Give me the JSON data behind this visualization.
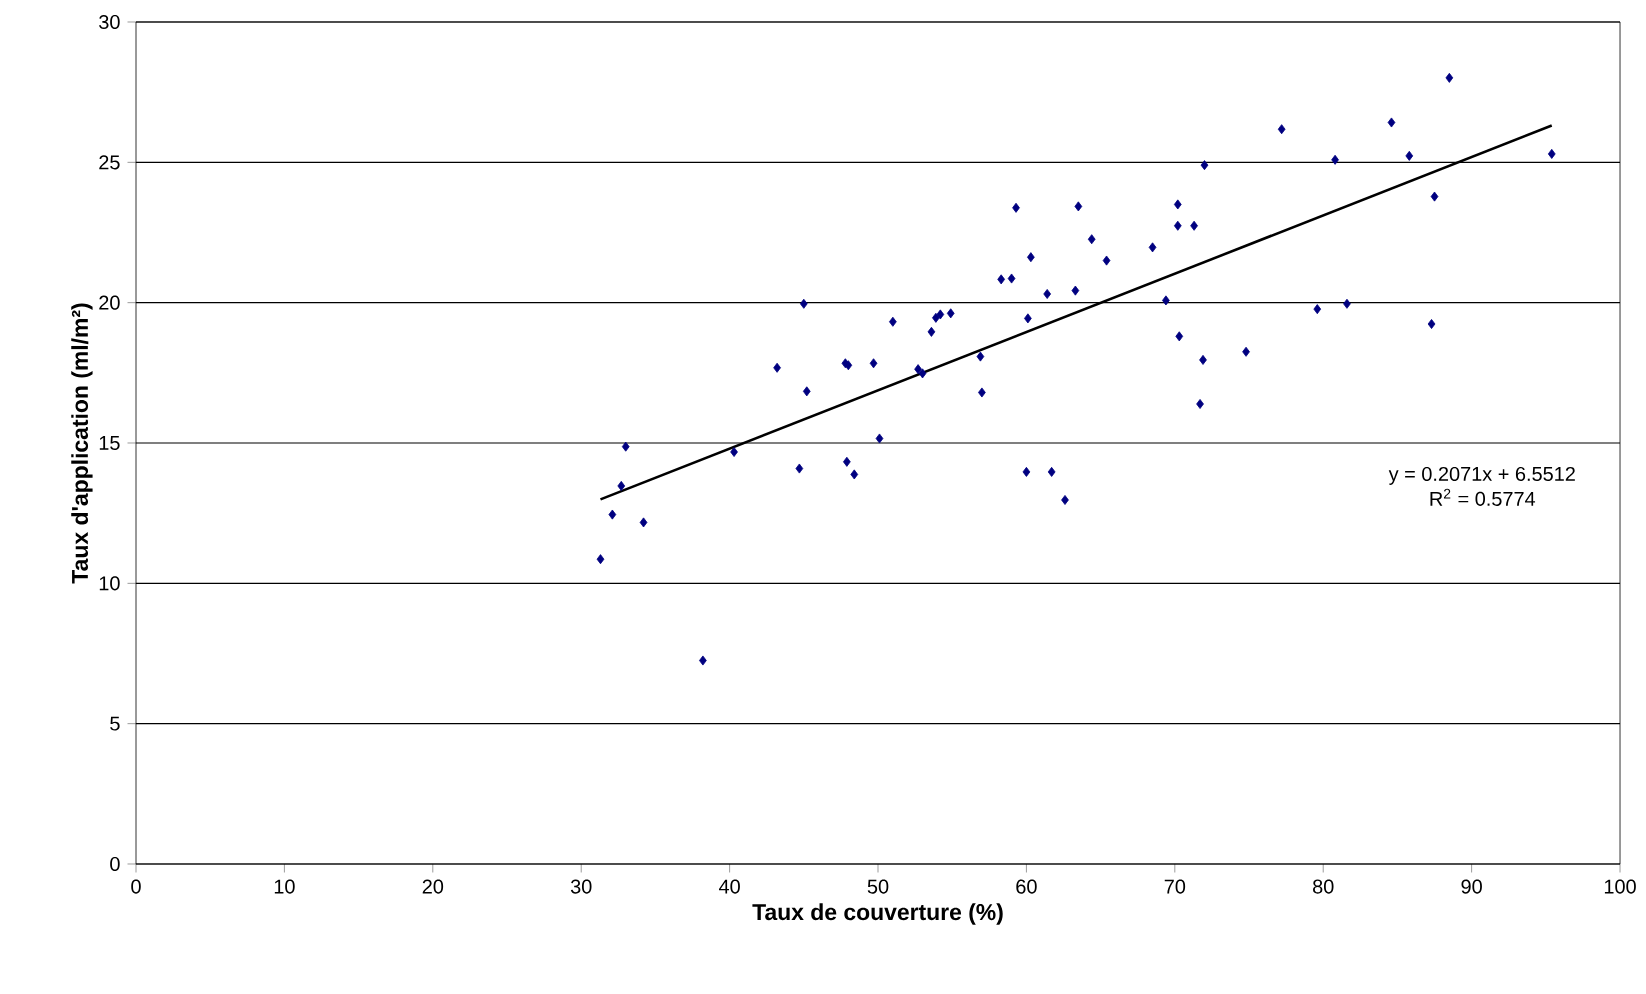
{
  "chart_data": {
    "type": "scatter",
    "xlabel": "Taux de couverture (%)",
    "ylabel": "Taux d'application (ml/m²)",
    "xlim": [
      0,
      100
    ],
    "ylim": [
      0,
      30
    ],
    "xticks": [
      0,
      10,
      20,
      30,
      40,
      50,
      60,
      70,
      80,
      90,
      100
    ],
    "yticks": [
      0,
      5,
      10,
      15,
      20,
      25,
      30
    ],
    "grid": "y",
    "marker": "diamond",
    "annotations": [
      "y = 0.2071x + 6.5512",
      "R$^{2}$ = 0.5774"
    ],
    "series": [
      {
        "color": "#000080",
        "x": [
          31.3,
          32.1,
          32.7,
          33.0,
          34.2,
          38.2,
          40.3,
          43.2,
          44.7,
          45.0,
          45.2,
          47.8,
          48.0,
          47.9,
          48.4,
          49.7,
          50.1,
          51.0,
          52.7,
          53.0,
          53.6,
          53.9,
          54.2,
          54.9,
          56.9,
          57.0,
          58.3,
          59.0,
          59.3,
          60.0,
          60.1,
          60.3,
          61.4,
          61.7,
          62.6,
          63.3,
          63.5,
          64.4,
          65.4,
          68.5,
          69.4,
          70.2,
          70.2,
          71.3,
          70.3,
          71.9,
          71.7,
          72.0,
          74.8,
          77.2,
          79.6,
          80.8,
          81.6,
          84.6,
          85.8,
          87.3,
          87.5,
          88.5,
          95.4
        ],
        "values": [
          10.86,
          12.45,
          13.47,
          14.87,
          12.17,
          7.25,
          14.68,
          17.68,
          14.09,
          19.96,
          16.84,
          17.84,
          17.77,
          14.33,
          13.88,
          17.84,
          15.16,
          19.32,
          17.63,
          17.48,
          18.96,
          19.46,
          19.58,
          19.62,
          18.08,
          16.8,
          20.83,
          20.86,
          23.38,
          13.97,
          19.44,
          21.62,
          20.31,
          13.97,
          12.97,
          20.43,
          23.43,
          22.26,
          21.5,
          21.97,
          20.08,
          23.5,
          22.74,
          22.74,
          18.8,
          17.96,
          16.39,
          24.9,
          18.25,
          26.18,
          19.77,
          25.09,
          19.96,
          26.42,
          25.23,
          19.24,
          23.78,
          28.01,
          25.3
        ]
      },
      {
        "type": "line",
        "color": "#000000",
        "marker": "none",
        "x": [
          31.3,
          95.4
        ],
        "values": [
          12.99,
          26.31
        ]
      }
    ]
  }
}
